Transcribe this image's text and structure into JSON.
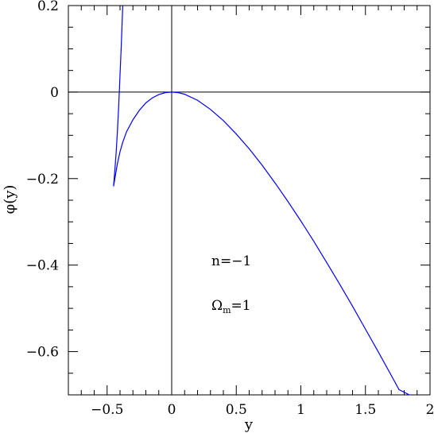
{
  "chart_data": {
    "type": "line",
    "title": "",
    "xlabel": "y",
    "ylabel": "φ(y)",
    "xlim": [
      -0.8,
      2.0
    ],
    "ylim": [
      -0.7,
      0.2
    ],
    "x_major_ticks": [
      -0.5,
      0,
      0.5,
      1,
      1.5,
      2
    ],
    "x_tick_labels": [
      "−0.5",
      "0",
      "0.5",
      "1",
      "1.5",
      "2"
    ],
    "x_minor_step": 0.1,
    "y_major_ticks": [
      -0.6,
      -0.4,
      -0.2,
      0,
      0.2
    ],
    "y_tick_labels": [
      "−0.6",
      "−0.4",
      "−0.2",
      "0",
      "0.2"
    ],
    "y_minor_step": 0.05,
    "reference_lines": {
      "horizontal_at": 0,
      "vertical_at": 0
    },
    "grid": false,
    "series": [
      {
        "color": "#0000ff",
        "points": [
          [
            -0.379,
            0.2
          ],
          [
            -0.39,
            0.11
          ],
          [
            -0.4,
            0.04
          ],
          [
            -0.41,
            -0.03
          ],
          [
            -0.42,
            -0.09
          ],
          [
            -0.43,
            -0.14
          ],
          [
            -0.44,
            -0.18
          ],
          [
            -0.45,
            -0.218
          ],
          [
            -0.44,
            -0.2
          ],
          [
            -0.42,
            -0.165
          ],
          [
            -0.4,
            -0.138
          ],
          [
            -0.38,
            -0.117
          ],
          [
            -0.35,
            -0.092
          ],
          [
            -0.3,
            -0.064
          ],
          [
            -0.25,
            -0.042
          ],
          [
            -0.2,
            -0.025
          ],
          [
            -0.15,
            -0.0135
          ],
          [
            -0.1,
            -0.0058
          ],
          [
            -0.05,
            -0.0014
          ],
          [
            0.0,
            0.0
          ],
          [
            0.05,
            -0.0013
          ],
          [
            0.1,
            -0.005
          ],
          [
            0.2,
            -0.019
          ],
          [
            0.3,
            -0.04
          ],
          [
            0.4,
            -0.066
          ],
          [
            0.5,
            -0.097
          ],
          [
            0.6,
            -0.131
          ],
          [
            0.7,
            -0.169
          ],
          [
            0.8,
            -0.21
          ],
          [
            0.9,
            -0.253
          ],
          [
            1.0,
            -0.298
          ],
          [
            1.1,
            -0.345
          ],
          [
            1.2,
            -0.394
          ],
          [
            1.3,
            -0.444
          ],
          [
            1.4,
            -0.495
          ],
          [
            1.5,
            -0.548
          ],
          [
            1.6,
            -0.601
          ],
          [
            1.7,
            -0.655
          ],
          [
            1.76,
            -0.688
          ],
          [
            1.84,
            -0.7
          ]
        ]
      }
    ],
    "annotations": [
      {
        "text": "n=−1"
      },
      {
        "text": "Ω",
        "sub": "m",
        "suffix": "=1"
      }
    ]
  }
}
